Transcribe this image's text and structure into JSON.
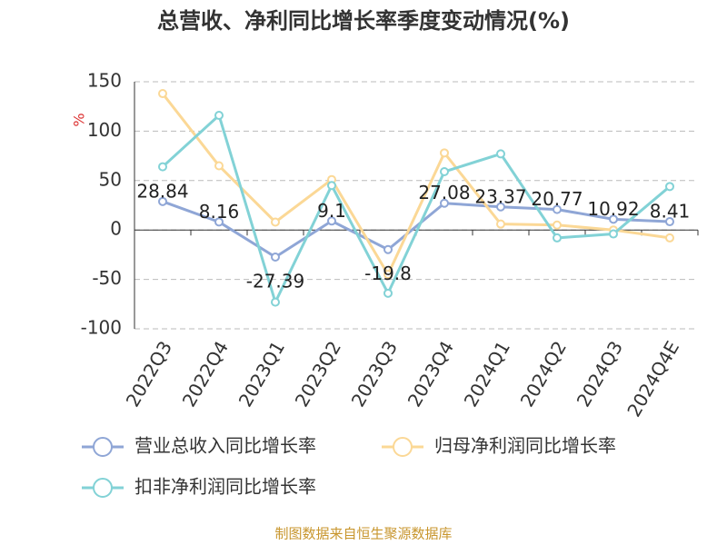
{
  "chart_data": {
    "type": "line",
    "title": "总营收、净利同比增长率季度变动情况(%)",
    "y_label": "%",
    "source": "制图数据来自恒生聚源数据库",
    "categories": [
      "2022Q3",
      "2022Q4",
      "2023Q1",
      "2023Q2",
      "2023Q3",
      "2023Q4",
      "2024Q1",
      "2024Q2",
      "2024Q3",
      "2024Q4E"
    ],
    "series": [
      {
        "name": "营业总收入同比增长率",
        "color": "#8fa6d6",
        "values": [
          28.84,
          8.16,
          -27.39,
          9.1,
          -19.8,
          27.08,
          23.37,
          20.77,
          10.92,
          8.41
        ],
        "data_labels": true
      },
      {
        "name": "归母净利润同比增长率",
        "color": "#fbd896",
        "values": [
          138,
          65,
          8,
          51,
          -45,
          78,
          6,
          5,
          0,
          -8
        ]
      },
      {
        "name": "扣非净利润同比增长率",
        "color": "#82d2d6",
        "values": [
          64,
          116,
          -73,
          45,
          -64,
          59,
          77,
          -8,
          -4,
          44
        ]
      }
    ],
    "ylim": [
      -100,
      150
    ],
    "yticks": [
      -100,
      -50,
      0,
      50,
      100,
      150
    ],
    "grid": true
  }
}
